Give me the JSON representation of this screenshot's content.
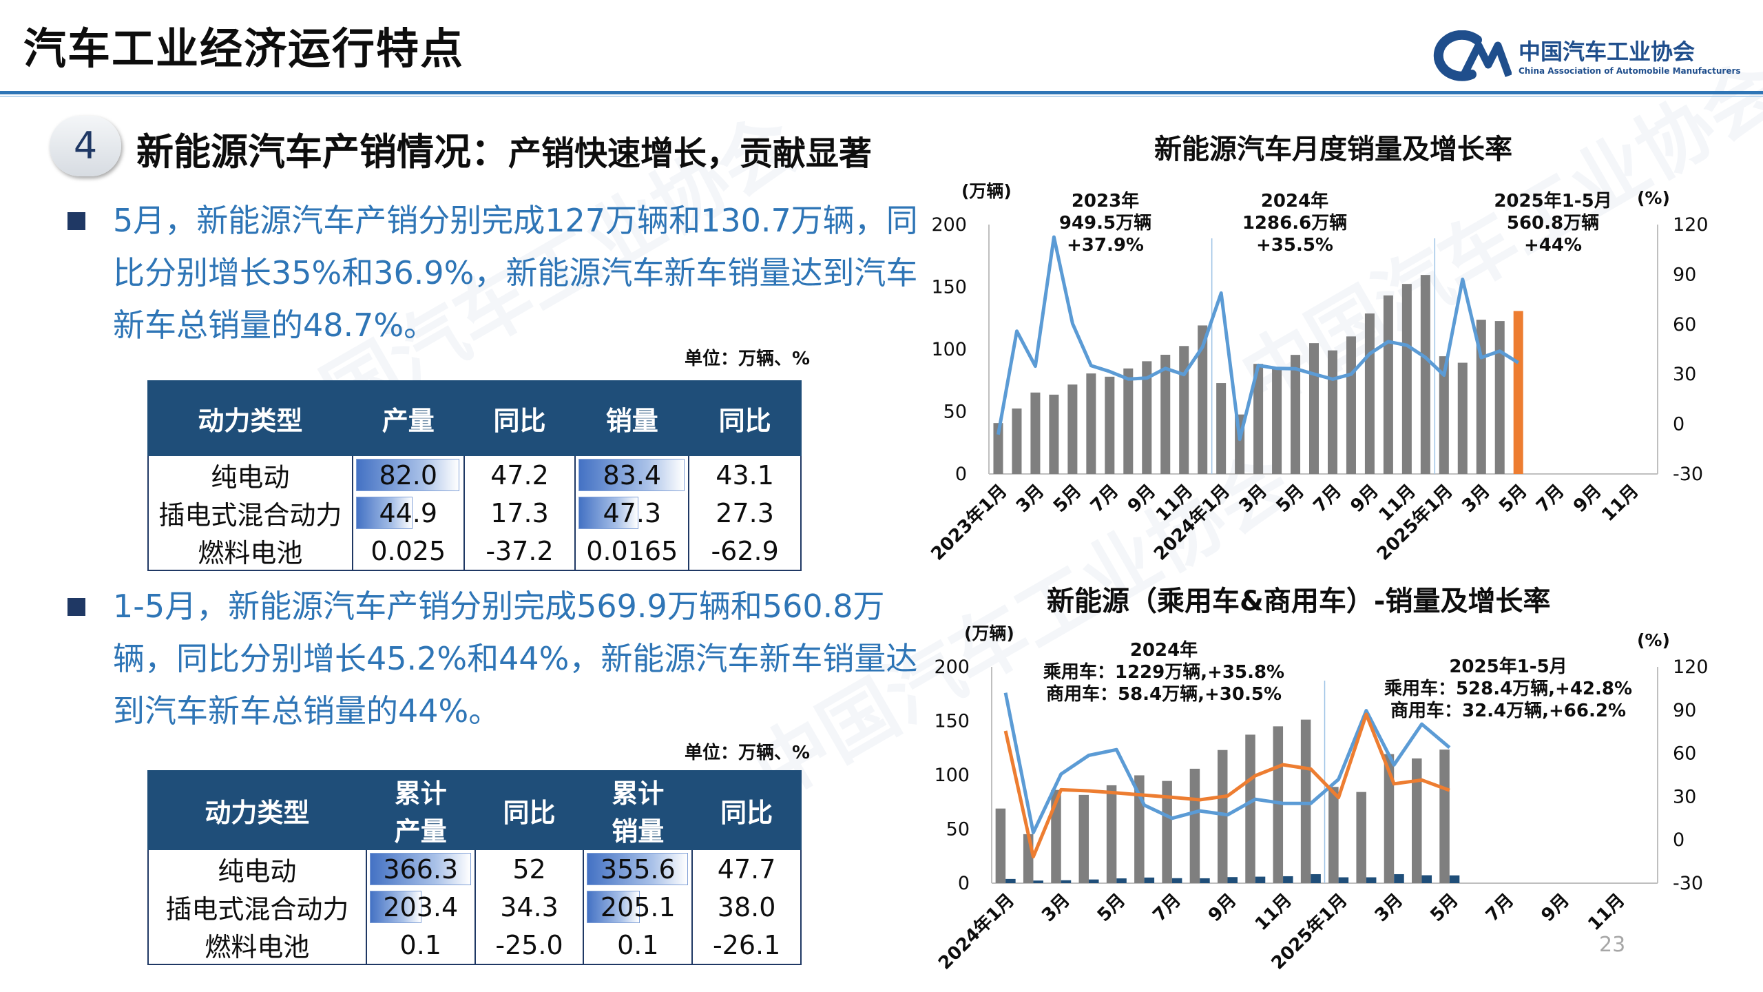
{
  "header": {
    "title": "汽车工业经济运行特点",
    "logo_cn": "中国汽车工业协会",
    "logo_en": "China Association of Automobile Manufacturers",
    "rule_color": "#2e75b6"
  },
  "section": {
    "number": "4",
    "title": "新能源汽车产销情况：",
    "subtitle": "产销快速增长，贡献显著"
  },
  "bullets": [
    {
      "text": "5月，新能源汽车产销分别完成127万辆和130.7万辆，同比分别增长35%和36.9%，新能源汽车新车销量达到汽车新车总销量的48.7%。"
    },
    {
      "text": "1-5月，新能源汽车产销分别完成569.9万辆和560.8万辆，同比分别增长45.2%和44%，新能源汽车新车销量达到汽车新车总销量的44%。"
    }
  ],
  "table1": {
    "unit": "单位：万辆、%",
    "headers": [
      "动力类型",
      "产量",
      "同比",
      "销量",
      "同比"
    ],
    "rows": [
      [
        "纯电动",
        "82.0",
        "47.2",
        "83.4",
        "43.1"
      ],
      [
        "插电式混合动力",
        "44.9",
        "17.3",
        "47.3",
        "27.3"
      ],
      [
        "燃料电池",
        "0.025",
        "-37.2",
        "0.0165",
        "-62.9"
      ]
    ],
    "bar_fraction": {
      "prod": [
        0.98,
        0.55,
        0.0
      ],
      "sales": [
        0.98,
        0.57,
        0.0
      ]
    }
  },
  "table2": {
    "unit": "单位：万辆、%",
    "headers": [
      "动力类型",
      "累计产量",
      "同比",
      "累计销量",
      "同比"
    ],
    "header_lines": {
      "c1a": "累计",
      "c1b": "产量",
      "c3a": "累计",
      "c3b": "销量"
    },
    "rows": [
      [
        "纯电动",
        "366.3",
        "52",
        "355.6",
        "47.7"
      ],
      [
        "插电式混合动力",
        "203.4",
        "34.3",
        "205.1",
        "38.0"
      ],
      [
        "燃料电池",
        "0.1",
        "-25.0",
        "0.1",
        "-26.1"
      ]
    ],
    "bar_fraction": {
      "prod": [
        0.98,
        0.52,
        0.0
      ],
      "sales": [
        0.98,
        0.53,
        0.0
      ]
    }
  },
  "page_number": "23",
  "chart_data": [
    {
      "type": "bar",
      "title": "新能源汽车月度销量及增长率",
      "y_unit_left": "(万辆)",
      "y_unit_right": "(%)",
      "ylim": [
        0,
        200
      ],
      "y2lim": [
        -30,
        120
      ],
      "y_ticks": [
        0,
        50,
        100,
        150,
        200
      ],
      "y2_ticks": [
        -30,
        0,
        30,
        60,
        90,
        120
      ],
      "x_tick_labels": [
        "2023年1月",
        "3月",
        "5月",
        "7月",
        "9月",
        "11月",
        "2024年1月",
        "3月",
        "5月",
        "7月",
        "9月",
        "11月",
        "2025年1月",
        "3月",
        "5月",
        "7月",
        "9月",
        "11月"
      ],
      "x_count": 36,
      "annotations": [
        {
          "lines": [
            "2023年",
            "949.5万辆",
            "+37.9%"
          ]
        },
        {
          "lines": [
            "2024年",
            "1286.6万辆",
            "+35.5%"
          ]
        },
        {
          "lines": [
            "2025年1-5月",
            "560.8万辆",
            "+44%"
          ]
        }
      ],
      "series": [
        {
          "kind": "bar",
          "color": "#7f7f7f",
          "highlight_color": "#ed7d31",
          "highlight_index": 28,
          "values": [
            40.8,
            52.5,
            65.3,
            63.6,
            71.7,
            80.6,
            78.0,
            84.6,
            90.4,
            95.6,
            102.6,
            119.1,
            72.9,
            47.7,
            88.3,
            85.0,
            95.5,
            104.9,
            99.1,
            110.3,
            128.7,
            143.2,
            152.4,
            159.6,
            94.4,
            89.2,
            123.7,
            122.6,
            130.7
          ]
        },
        {
          "kind": "line",
          "axis": "right",
          "color": "#5b9bd5",
          "values": [
            -6.3,
            55.9,
            34.8,
            112.5,
            60.5,
            35.2,
            31.6,
            27.1,
            27.7,
            33.5,
            29.8,
            46.4,
            78.8,
            -9.2,
            35.3,
            33.5,
            33.3,
            30.1,
            27.0,
            30.0,
            42.3,
            49.6,
            47.4,
            40.1,
            29.4,
            87.1,
            40.0,
            43.9,
            36.9
          ]
        }
      ]
    },
    {
      "type": "bar",
      "title": "新能源（乘用车&商用车）-销量及增长率",
      "y_unit_left": "(万辆)",
      "y_unit_right": "(%)",
      "ylim": [
        0,
        200
      ],
      "y2lim": [
        -30,
        120
      ],
      "y_ticks": [
        0,
        50,
        100,
        150,
        200
      ],
      "y2_ticks": [
        -30,
        0,
        30,
        60,
        90,
        120
      ],
      "x_tick_labels": [
        "2024年1月",
        "3月",
        "5月",
        "7月",
        "9月",
        "11月",
        "2025年1月",
        "3月",
        "5月",
        "7月",
        "9月",
        "11月"
      ],
      "x_count": 24,
      "annotations": [
        {
          "lines": [
            "2024年",
            "乘用车：1229万辆,+35.8%",
            "商用车：58.4万辆,+30.5%"
          ]
        },
        {
          "lines": [
            "2025年1-5月",
            "乘用车：528.4万辆,+42.8%",
            "商用车：32.4万辆,+66.2%"
          ]
        }
      ],
      "series": [
        {
          "kind": "bar",
          "name": "乘用车",
          "color": "#7f7f7f",
          "values": [
            69.0,
            45.3,
            86.2,
            81.6,
            90.5,
            99.7,
            94.5,
            105.8,
            123.1,
            137.3,
            145.0,
            151.2,
            89.0,
            84.3,
            119.3,
            115.3,
            123.5
          ]
        },
        {
          "kind": "bar",
          "name": "商用车",
          "color": "#1f4e79",
          "values": [
            3.9,
            2.4,
            2.7,
            3.4,
            4.4,
            5.2,
            4.6,
            4.5,
            5.6,
            6.0,
            6.4,
            8.3,
            5.4,
            5.4,
            8.3,
            7.3,
            7.2
          ]
        },
        {
          "kind": "line",
          "axis": "right",
          "color": "#5b9bd5",
          "name": "商用车增长率",
          "values": [
            102.0,
            5.0,
            45.6,
            58.6,
            62.6,
            24.1,
            15.0,
            20.1,
            17.4,
            28.2,
            25.3,
            25.3,
            42.0,
            89.6,
            52.0,
            80.3,
            64.0
          ]
        },
        {
          "kind": "line",
          "axis": "right",
          "color": "#ed7d31",
          "name": "乘用车增长率",
          "values": [
            75.6,
            -11.7,
            34.8,
            34.0,
            32.6,
            31.0,
            29.5,
            27.8,
            30.5,
            44.5,
            52.1,
            49.1,
            29.4,
            87.1,
            38.9,
            41.5,
            34.4
          ]
        }
      ]
    }
  ]
}
